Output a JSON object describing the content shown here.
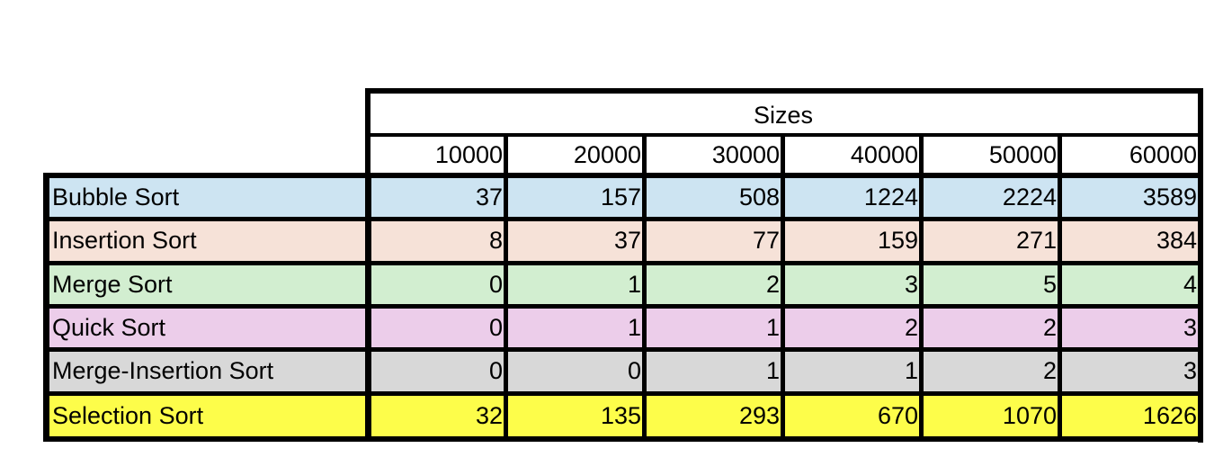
{
  "table": {
    "sizes_label": "Sizes",
    "columns": [
      "10000",
      "20000",
      "30000",
      "40000",
      "50000",
      "60000"
    ],
    "rows": [
      {
        "name": "Bubble Sort",
        "color": "#cde4f2",
        "values": [
          "37",
          "157",
          "508",
          "1224",
          "2224",
          "3589"
        ]
      },
      {
        "name": "Insertion Sort",
        "color": "#f6e2d8",
        "values": [
          "8",
          "37",
          "77",
          "159",
          "271",
          "384"
        ]
      },
      {
        "name": "Merge Sort",
        "color": "#d2eed0",
        "values": [
          "0",
          "1",
          "2",
          "3",
          "5",
          "4"
        ]
      },
      {
        "name": "Quick Sort",
        "color": "#eccdea",
        "values": [
          "0",
          "1",
          "1",
          "2",
          "2",
          "3"
        ]
      },
      {
        "name": "Merge-Insertion Sort",
        "color": "#d8d8d8",
        "values": [
          "0",
          "0",
          "1",
          "1",
          "2",
          "3"
        ]
      },
      {
        "name": "Selection Sort",
        "color": "#fdfd4a",
        "values": [
          "32",
          "135",
          "293",
          "670",
          "1070",
          "1626"
        ]
      }
    ]
  },
  "chart_data": {
    "type": "table",
    "title": "",
    "column_header": "Sizes",
    "columns": [
      10000,
      20000,
      30000,
      40000,
      50000,
      60000
    ],
    "rows": [
      {
        "name": "Bubble Sort",
        "values": [
          37,
          157,
          508,
          1224,
          2224,
          3589
        ]
      },
      {
        "name": "Insertion Sort",
        "values": [
          8,
          37,
          77,
          159,
          271,
          384
        ]
      },
      {
        "name": "Merge Sort",
        "values": [
          0,
          1,
          2,
          3,
          5,
          4
        ]
      },
      {
        "name": "Quick Sort",
        "values": [
          0,
          1,
          1,
          2,
          2,
          3
        ]
      },
      {
        "name": "Merge-Insertion Sort",
        "values": [
          0,
          0,
          1,
          1,
          2,
          3
        ]
      },
      {
        "name": "Selection Sort",
        "values": [
          32,
          135,
          293,
          670,
          1070,
          1626
        ]
      }
    ]
  }
}
